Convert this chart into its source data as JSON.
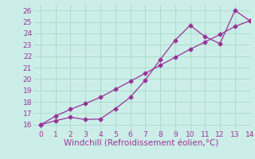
{
  "xlabel": "Windchill (Refroidissement éolien,°C)",
  "bg_color": "#cceee8",
  "line_color": "#993399",
  "grid_color": "#aaddcc",
  "xlim": [
    -0.5,
    14
  ],
  "ylim": [
    15.5,
    26.5
  ],
  "xticks": [
    0,
    1,
    2,
    3,
    4,
    5,
    6,
    7,
    8,
    9,
    10,
    11,
    12,
    13,
    14
  ],
  "yticks": [
    16,
    17,
    18,
    19,
    20,
    21,
    22,
    23,
    24,
    25,
    26
  ],
  "line1_x": [
    0,
    1,
    2,
    3,
    4,
    5,
    6,
    7,
    8,
    9,
    10,
    11,
    12,
    13,
    14
  ],
  "line1_y": [
    16.0,
    16.35,
    16.65,
    16.45,
    16.5,
    17.4,
    18.4,
    19.9,
    21.7,
    23.4,
    24.7,
    23.7,
    23.1,
    26.0,
    25.1
  ],
  "line2_x": [
    0,
    1,
    2,
    3,
    4,
    5,
    6,
    7,
    8,
    9,
    10,
    11,
    12,
    13,
    14
  ],
  "line2_y": [
    16.0,
    16.75,
    17.35,
    17.85,
    18.4,
    19.1,
    19.8,
    20.5,
    21.2,
    21.9,
    22.6,
    23.25,
    23.9,
    24.6,
    25.1
  ],
  "marker": "D",
  "markersize": 2.5,
  "linewidth": 0.9,
  "xlabel_fontsize": 7.5,
  "tick_fontsize": 6.5
}
